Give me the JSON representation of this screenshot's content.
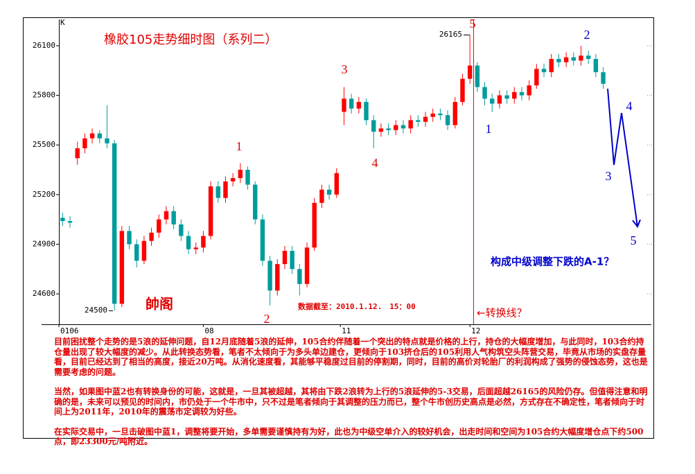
{
  "chart_data": {
    "type": "candlestick",
    "title": "橡胶105走势细时图（系列二）",
    "open": [
      25060,
      25040,
      25420,
      25480,
      25540,
      25570,
      25540,
      25510,
      24540,
      24980,
      24900,
      24800,
      24920,
      24970,
      25050,
      25100,
      25020,
      24950,
      24870,
      24880,
      24950,
      25250,
      25180,
      25280,
      25300,
      25350,
      25260,
      25050,
      24800,
      24620,
      24780,
      24860,
      24750,
      24660,
      24880,
      25150,
      25230,
      25200,
      25700,
      25780,
      25720,
      25760,
      25650,
      25580,
      25600,
      25590,
      25620,
      25600,
      25650,
      25640,
      25670,
      25690,
      25680,
      25620,
      25760,
      25900,
      25980,
      25850,
      25780,
      25750,
      25800,
      25780,
      25820,
      25800,
      25860,
      25960,
      25940,
      26020,
      26000,
      26030,
      26010,
      26040,
      26020,
      25940
    ],
    "high": [
      25090,
      25070,
      25520,
      25570,
      25600,
      25590,
      25740,
      25530,
      25010,
      25010,
      24930,
      24950,
      25000,
      25080,
      25130,
      25130,
      25050,
      24980,
      24910,
      24980,
      25280,
      25280,
      25310,
      25330,
      25390,
      25370,
      25280,
      25080,
      24830,
      24810,
      24890,
      24890,
      24780,
      24910,
      25180,
      25260,
      25260,
      25360,
      25850,
      25810,
      25790,
      25780,
      25680,
      25630,
      25630,
      25650,
      25650,
      25680,
      25680,
      25700,
      25720,
      25720,
      25710,
      25790,
      25930,
      26165,
      26000,
      25880,
      25810,
      25830,
      25830,
      25850,
      25850,
      25890,
      25990,
      25990,
      26050,
      26050,
      26060,
      26060,
      26100,
      26070,
      26050,
      25970
    ],
    "low": [
      25010,
      25000,
      25380,
      25450,
      25510,
      25510,
      25480,
      24500,
      24520,
      24870,
      24760,
      24780,
      24890,
      24940,
      25020,
      24990,
      24920,
      24840,
      24840,
      24850,
      24930,
      25150,
      25150,
      25250,
      25270,
      25230,
      25020,
      24770,
      24530,
      24590,
      24750,
      24720,
      24590,
      24640,
      24860,
      25120,
      25170,
      25180,
      25620,
      25690,
      25690,
      25620,
      25480,
      25550,
      25560,
      25560,
      25570,
      25570,
      25610,
      25610,
      25640,
      25650,
      25590,
      25600,
      25740,
      25870,
      25820,
      25740,
      25700,
      25720,
      25750,
      25750,
      25770,
      25770,
      25840,
      25910,
      25910,
      25970,
      25970,
      25980,
      25980,
      25990,
      25910,
      25840
    ],
    "close": [
      25040,
      25030,
      25480,
      25540,
      25570,
      25540,
      25510,
      24540,
      24980,
      24900,
      24800,
      24920,
      24970,
      25050,
      25100,
      25020,
      24950,
      24870,
      24880,
      24950,
      25250,
      25180,
      25280,
      25300,
      25350,
      25260,
      25050,
      24800,
      24620,
      24780,
      24860,
      24750,
      24660,
      24880,
      25150,
      25230,
      25200,
      25330,
      25780,
      25720,
      25760,
      25650,
      25580,
      25600,
      25590,
      25620,
      25600,
      25650,
      25640,
      25670,
      25690,
      25680,
      25620,
      25760,
      25900,
      25980,
      25850,
      25780,
      25750,
      25800,
      25780,
      25820,
      25800,
      25860,
      25960,
      25940,
      26020,
      26000,
      26030,
      26010,
      26040,
      26020,
      25940,
      25870
    ],
    "up_color": "#ff0000",
    "down_color": "#009c9c",
    "ylim": [
      24416,
      26259
    ],
    "yticks": [
      24600,
      24900,
      25200,
      25500,
      25800,
      26100
    ],
    "xlim": [
      0,
      80
    ],
    "xticks": [
      {
        "value": 0,
        "label": "0106"
      },
      {
        "value": 19.5,
        "label": "08"
      },
      {
        "value": 38,
        "label": "11"
      },
      {
        "value": 55.5,
        "label": "12"
      }
    ],
    "wave_labels_red": [
      "1",
      "2",
      "3",
      "4",
      "5"
    ],
    "wave_labels_blue": [
      "1",
      "2",
      "3",
      "4",
      "5"
    ],
    "annotations": [
      "K",
      "帥阁",
      "数据截至：2010.1.12.　15：00",
      "←转换线？",
      "构成中级调整下跌的A-1？"
    ],
    "notes": [
      "目前困扰整个走势的是5浪的延伸问题，自12月底随着5浪的延伸，105合约伴随着一个突出的特点就是价格的上行，持仓的大幅度增加，与此同时，103合约持仓量出现了较大幅度的减少。从此转换态势看，笔者不太倾向于为多头单边建仓，更倾向于103挤仓后的105利用人气构筑空头阵营交易，毕竟从市场的实盘存量看，目前已经达到了相当的高度，接近20万吨。从消化速度看，其能够平稳度过目前的停割期，同时，目前的高价对轮胎厂的利润构成了强势的侵蚀态势，这也是需要考虑的问题。",
      "当然，如果图中蓝2也有转换身份的可能，这就是，一旦其被超越，其将由下跌2浪转为上行的5浪延伸的5-3交易，后面超越26165的风险仍存。但值得注意和明确的是，未来可以预见的时间内，市仍处于一个牛市中，只不过是笔者倾向于其调整的压力而已，整个牛市创历史高点是必然，方式存在不确定性，笔者倾向于时间上为2011年，2010年的震荡市定调较为好些。",
      "在实际交易中，一旦击破图中蓝1，调整将要开始，多单需要谨慎持有为好，此也为中级空单介入的较好机会，出走时间和空间为105合约大幅度增仓点下约500点，即23300元/吨附近。"
    ]
  }
}
